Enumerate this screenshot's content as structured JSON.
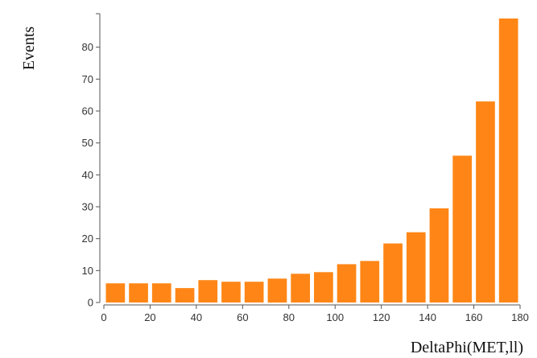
{
  "chart_data": {
    "type": "bar",
    "title": "",
    "xlabel": "DeltaPhi(MET,ll)",
    "ylabel": "Events",
    "bin_edges": [
      0,
      10,
      20,
      30,
      40,
      50,
      60,
      70,
      80,
      90,
      100,
      110,
      120,
      130,
      140,
      150,
      160,
      170,
      180
    ],
    "values": [
      6,
      6,
      6,
      4.5,
      7,
      6.5,
      6.5,
      7.5,
      9,
      9.5,
      12,
      13,
      18.5,
      22,
      29.5,
      46,
      63,
      89
    ],
    "xlim": [
      0,
      180
    ],
    "ylim": [
      0,
      90
    ],
    "xticks": [
      "0",
      "20",
      "40",
      "60",
      "80",
      "100",
      "120",
      "140",
      "160",
      "180"
    ],
    "yticks": [
      "0",
      "10",
      "20",
      "30",
      "40",
      "50",
      "60",
      "70",
      "80"
    ],
    "bar_color": "#ff8616",
    "grid": false,
    "legend": "none"
  }
}
